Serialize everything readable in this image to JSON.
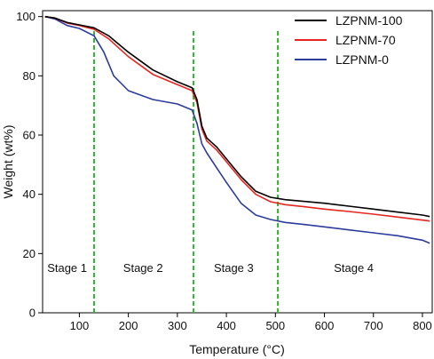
{
  "chart_data": {
    "type": "line",
    "xlabel": "Temperature (°C)",
    "ylabel": "Weight (wt%)",
    "xlim": [
      25,
      820
    ],
    "ylim": [
      0,
      102
    ],
    "xticks": [
      100,
      200,
      300,
      400,
      500,
      600,
      700,
      800
    ],
    "yticks": [
      0,
      20,
      40,
      60,
      80,
      100
    ],
    "grid": false,
    "legend_position": "top-right",
    "series": [
      {
        "name": "LZPNM-100",
        "color": "#000000",
        "x": [
          30,
          50,
          75,
          100,
          130,
          160,
          200,
          250,
          300,
          330,
          340,
          350,
          360,
          380,
          400,
          430,
          460,
          490,
          520,
          560,
          600,
          650,
          700,
          750,
          800,
          815
        ],
        "y": [
          100,
          99.5,
          98,
          97.2,
          96.2,
          93.5,
          88,
          82,
          78,
          76,
          72,
          63,
          59,
          56,
          52,
          46,
          41,
          39,
          38.2,
          37.6,
          37,
          36,
          35,
          34,
          33,
          32.5
        ]
      },
      {
        "name": "LZPNM-70",
        "color": "#e8251f",
        "x": [
          30,
          50,
          75,
          100,
          130,
          160,
          200,
          250,
          300,
          330,
          340,
          350,
          360,
          380,
          400,
          430,
          460,
          490,
          520,
          560,
          600,
          650,
          700,
          750,
          800,
          815
        ],
        "y": [
          100,
          99.5,
          97.8,
          97,
          95.7,
          92.5,
          86.5,
          80.5,
          77,
          75,
          71,
          62,
          58,
          55,
          51,
          45,
          40,
          37.5,
          36.5,
          35.8,
          35,
          34.2,
          33.3,
          32.3,
          31.3,
          31
        ]
      },
      {
        "name": "LZPNM-0",
        "color": "#2b3c9c",
        "x": [
          30,
          50,
          75,
          100,
          130,
          150,
          170,
          200,
          250,
          300,
          330,
          340,
          350,
          360,
          380,
          400,
          430,
          460,
          490,
          520,
          560,
          600,
          650,
          700,
          750,
          800,
          815
        ],
        "y": [
          100,
          99.2,
          97,
          96,
          93.5,
          88,
          80,
          75,
          72,
          70.5,
          68.5,
          64,
          57,
          54,
          49,
          44,
          37,
          33,
          31.5,
          30.5,
          29.8,
          29,
          28,
          27,
          26,
          24.5,
          23.5
        ]
      }
    ],
    "stage_boundaries": [
      130,
      333,
      505
    ],
    "stage_boundary_color": "#2db830",
    "stages": [
      {
        "label": "Stage 1",
        "x": 75
      },
      {
        "label": "Stage 2",
        "x": 230
      },
      {
        "label": "Stage 3",
        "x": 415
      },
      {
        "label": "Stage 4",
        "x": 660
      }
    ],
    "stage_label_y": 15
  }
}
